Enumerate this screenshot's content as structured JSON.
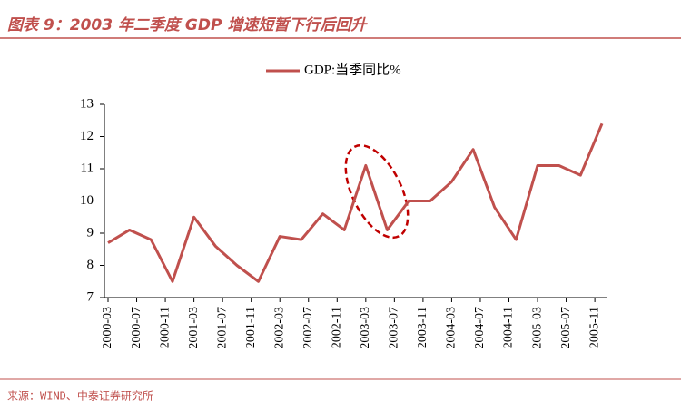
{
  "header": {
    "title": "图表 9：2003 年二季度 GDP 增速短暂下行后回升"
  },
  "chart_data": {
    "type": "line",
    "x": [
      "2000-03",
      "2000-06",
      "2000-09",
      "2000-12",
      "2001-03",
      "2001-06",
      "2001-09",
      "2001-12",
      "2002-03",
      "2002-06",
      "2002-09",
      "2002-12",
      "2003-03",
      "2003-06",
      "2003-09",
      "2003-12",
      "2004-03",
      "2004-06",
      "2004-09",
      "2004-12",
      "2005-03",
      "2005-06",
      "2005-09",
      "2005-12"
    ],
    "xticks": [
      "2000-03",
      "2000-07",
      "2000-11",
      "2001-03",
      "2001-07",
      "2001-11",
      "2002-03",
      "2002-07",
      "2002-11",
      "2003-03",
      "2003-07",
      "2003-11",
      "2004-03",
      "2004-07",
      "2004-11",
      "2005-03",
      "2005-07",
      "2005-11"
    ],
    "series": [
      {
        "name": "GDP:当季同比%",
        "color": "#c0504d",
        "values": [
          8.7,
          9.1,
          8.8,
          7.5,
          9.5,
          8.6,
          8.0,
          7.5,
          8.9,
          8.8,
          9.6,
          9.1,
          11.1,
          9.1,
          10.0,
          10.0,
          10.6,
          11.6,
          9.8,
          8.8,
          11.1,
          11.1,
          10.8,
          12.4
        ]
      }
    ],
    "ylim": [
      7,
      13
    ],
    "yticks": [
      7,
      8,
      9,
      10,
      11,
      12,
      13
    ],
    "legend": "top"
  },
  "footer": {
    "source": "来源：WIND、中泰证券研究所"
  }
}
